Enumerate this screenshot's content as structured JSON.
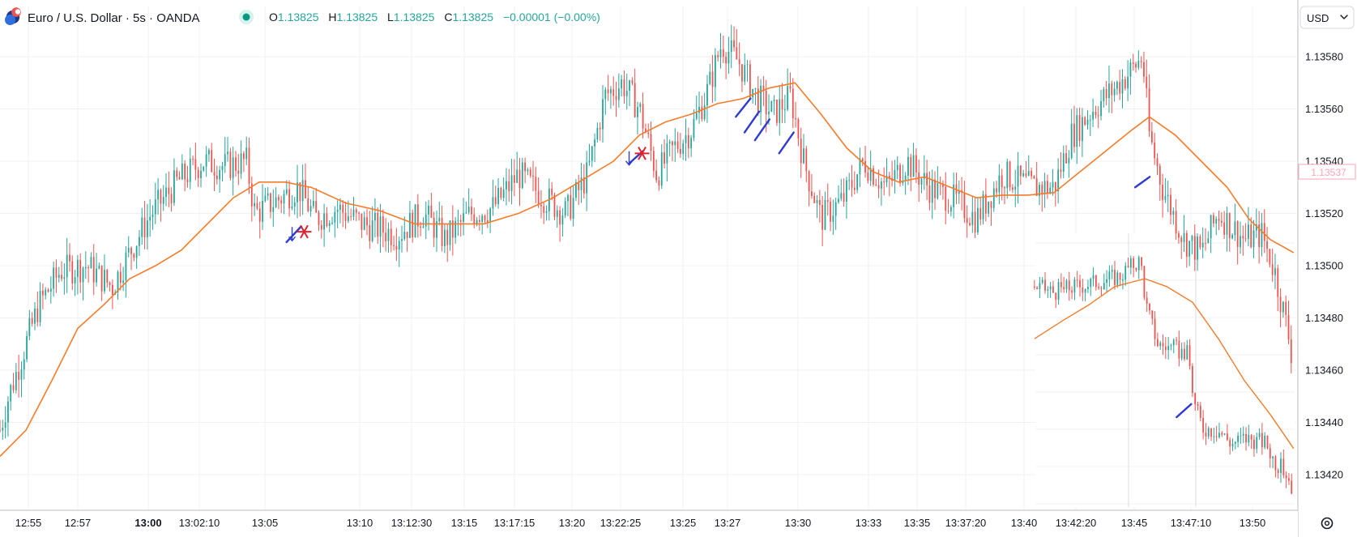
{
  "header": {
    "symbol_title": "Euro / U.S. Dollar · 5s · OANDA",
    "ohlc": {
      "o_label": "O",
      "o_value": "1.13825",
      "h_label": "H",
      "h_value": "1.13825",
      "l_label": "L",
      "l_value": "1.13825",
      "c_label": "C",
      "c_value": "1.13825",
      "change": "−0.00001 (−0.00%)"
    },
    "market_status_color": "#089981"
  },
  "currency_selector": {
    "label": "USD"
  },
  "current_price_tag": {
    "value": "1.13537"
  },
  "colors": {
    "up": "#26a69a",
    "down": "#ef5350",
    "ma": "#f57c2a",
    "grid": "#eef1f5",
    "signal_line": "#2d3bd1",
    "signal_marker": "#e0222d",
    "text": "#131722"
  },
  "chart_data": {
    "type": "candlestick",
    "y_axis": {
      "ylim": [
        1.13405,
        1.13595
      ],
      "ticks": [
        "1.13580",
        "1.13560",
        "1.13540",
        "1.13520",
        "1.13500",
        "1.13480",
        "1.13460",
        "1.13440",
        "1.13420"
      ]
    },
    "x_axis": {
      "ticks": [
        "12:55",
        "12:57",
        "13:00",
        "13:02:10",
        "13:05",
        "13:10",
        "13:12:30",
        "13:15",
        "13:17:15",
        "13:20",
        "13:22:25",
        "13:25",
        "13:27",
        "13:30",
        "13:33",
        "13:35",
        "13:37:20",
        "13:40",
        "13:42:20",
        "13:45",
        "13:47:10",
        "13:50"
      ],
      "bold_ticks": [
        "13:00"
      ]
    },
    "grid": true,
    "main_series": {
      "price_path": [
        [
          0,
          1.13437
        ],
        [
          10,
          1.1345
        ],
        [
          25,
          1.13465
        ],
        [
          45,
          1.13485
        ],
        [
          70,
          1.13498
        ],
        [
          100,
          1.135
        ],
        [
          130,
          1.13492
        ],
        [
          150,
          1.13505
        ],
        [
          175,
          1.1352
        ],
        [
          205,
          1.13532
        ],
        [
          235,
          1.1354
        ],
        [
          260,
          1.13538
        ],
        [
          285,
          1.1354
        ],
        [
          295,
          1.1352
        ],
        [
          320,
          1.13525
        ],
        [
          345,
          1.1353
        ],
        [
          365,
          1.13518
        ],
        [
          390,
          1.13522
        ],
        [
          420,
          1.13516
        ],
        [
          460,
          1.13512
        ],
        [
          490,
          1.1352
        ],
        [
          515,
          1.1351
        ],
        [
          545,
          1.1352
        ],
        [
          570,
          1.13522
        ],
        [
          600,
          1.13535
        ],
        [
          630,
          1.13526
        ],
        [
          655,
          1.1352
        ],
        [
          680,
          1.13535
        ],
        [
          700,
          1.13565
        ],
        [
          720,
          1.1357
        ],
        [
          740,
          1.1356
        ],
        [
          760,
          1.13535
        ],
        [
          780,
          1.13545
        ],
        [
          800,
          1.13552
        ],
        [
          820,
          1.13568
        ],
        [
          835,
          1.13585
        ],
        [
          855,
          1.13578
        ],
        [
          875,
          1.13565
        ],
        [
          895,
          1.13558
        ],
        [
          915,
          1.13565
        ],
        [
          930,
          1.1354
        ],
        [
          950,
          1.13518
        ],
        [
          975,
          1.13525
        ],
        [
          1000,
          1.1354
        ],
        [
          1025,
          1.1353
        ],
        [
          1050,
          1.1354
        ],
        [
          1075,
          1.1353
        ],
        [
          1105,
          1.13525
        ],
        [
          1130,
          1.13518
        ],
        [
          1160,
          1.13535
        ],
        [
          1195,
          1.1353
        ],
        [
          1220,
          1.1353
        ],
        [
          1240,
          1.1355
        ],
        [
          1265,
          1.1356
        ],
        [
          1290,
          1.13568
        ],
        [
          1310,
          1.13575
        ],
        [
          1322,
          1.1358
        ],
        [
          1330,
          1.1355
        ],
        [
          1345,
          1.1353
        ],
        [
          1370,
          1.1351
        ],
        [
          1390,
          1.13505
        ],
        [
          1410,
          1.1352
        ],
        [
          1440,
          1.1351
        ],
        [
          1460,
          1.13512
        ],
        [
          1475,
          1.13498
        ],
        [
          1490,
          1.13475
        ],
        [
          1497,
          1.13462
        ]
      ],
      "ma_path": [
        [
          0,
          1.13427
        ],
        [
          30,
          1.13437
        ],
        [
          60,
          1.13456
        ],
        [
          90,
          1.13476
        ],
        [
          120,
          1.13485
        ],
        [
          150,
          1.13495
        ],
        [
          180,
          1.135
        ],
        [
          210,
          1.13506
        ],
        [
          240,
          1.13516
        ],
        [
          270,
          1.13526
        ],
        [
          300,
          1.13532
        ],
        [
          330,
          1.13532
        ],
        [
          360,
          1.1353
        ],
        [
          400,
          1.13524
        ],
        [
          440,
          1.13521
        ],
        [
          480,
          1.13516
        ],
        [
          520,
          1.13516
        ],
        [
          560,
          1.13516
        ],
        [
          600,
          1.1352
        ],
        [
          640,
          1.13526
        ],
        [
          680,
          1.13534
        ],
        [
          710,
          1.1354
        ],
        [
          740,
          1.1355
        ],
        [
          770,
          1.13555
        ],
        [
          800,
          1.13558
        ],
        [
          830,
          1.13562
        ],
        [
          860,
          1.13564
        ],
        [
          890,
          1.13568
        ],
        [
          920,
          1.1357
        ],
        [
          950,
          1.13558
        ],
        [
          980,
          1.13545
        ],
        [
          1010,
          1.13536
        ],
        [
          1040,
          1.13532
        ],
        [
          1070,
          1.13534
        ],
        [
          1100,
          1.1353
        ],
        [
          1130,
          1.13526
        ],
        [
          1160,
          1.13527
        ],
        [
          1190,
          1.13527
        ],
        [
          1220,
          1.13528
        ],
        [
          1250,
          1.13536
        ],
        [
          1280,
          1.13544
        ],
        [
          1310,
          1.13552
        ],
        [
          1330,
          1.13557
        ],
        [
          1360,
          1.1355
        ],
        [
          1390,
          1.1354
        ],
        [
          1420,
          1.1353
        ],
        [
          1445,
          1.13518
        ],
        [
          1470,
          1.1351
        ],
        [
          1497,
          1.13505
        ]
      ]
    },
    "inset_series": {
      "price_path": [
        [
          1197,
          1.13492
        ],
        [
          1220,
          1.1349
        ],
        [
          1245,
          1.13492
        ],
        [
          1270,
          1.13494
        ],
        [
          1295,
          1.13496
        ],
        [
          1310,
          1.135
        ],
        [
          1320,
          1.13502
        ],
        [
          1326,
          1.13485
        ],
        [
          1340,
          1.1347
        ],
        [
          1360,
          1.13468
        ],
        [
          1375,
          1.13466
        ],
        [
          1382,
          1.13447
        ],
        [
          1392,
          1.13438
        ],
        [
          1410,
          1.13437
        ],
        [
          1425,
          1.13432
        ],
        [
          1440,
          1.13434
        ],
        [
          1455,
          1.13433
        ],
        [
          1465,
          1.13432
        ],
        [
          1475,
          1.13425
        ],
        [
          1490,
          1.1342
        ],
        [
          1497,
          1.13413
        ]
      ],
      "ma_path": [
        [
          1197,
          1.13472
        ],
        [
          1230,
          1.13479
        ],
        [
          1260,
          1.13485
        ],
        [
          1290,
          1.13492
        ],
        [
          1325,
          1.13495
        ],
        [
          1350,
          1.13492
        ],
        [
          1380,
          1.13486
        ],
        [
          1410,
          1.13472
        ],
        [
          1440,
          1.13456
        ],
        [
          1470,
          1.13443
        ],
        [
          1497,
          1.1343
        ]
      ]
    },
    "signals": [
      {
        "x": 340,
        "y1": 1.13509,
        "y2": 1.13515,
        "kind": "slash"
      },
      {
        "x": 338,
        "y": 1.13512,
        "kind": "arrow-down"
      },
      {
        "x": 352,
        "y": 1.13513,
        "kind": "asterisk"
      },
      {
        "x": 736,
        "y1": 1.13539,
        "y2": 1.13544,
        "kind": "slash"
      },
      {
        "x": 728,
        "y": 1.13541,
        "kind": "arrow-down"
      },
      {
        "x": 743,
        "y": 1.13543,
        "kind": "asterisk"
      },
      {
        "x": 860,
        "y1": 1.13557,
        "y2": 1.13564,
        "kind": "slash"
      },
      {
        "x": 870,
        "y1": 1.13551,
        "y2": 1.13559,
        "kind": "slash"
      },
      {
        "x": 882,
        "y1": 1.13548,
        "y2": 1.13556,
        "kind": "slash"
      },
      {
        "x": 910,
        "y1": 1.13543,
        "y2": 1.13551,
        "kind": "slash"
      },
      {
        "x": 1322,
        "y1": 1.1353,
        "y2": 1.13534,
        "kind": "slash"
      },
      {
        "x": 1370,
        "y1": 1.13442,
        "y2": 1.13447,
        "kind": "slash"
      }
    ]
  }
}
